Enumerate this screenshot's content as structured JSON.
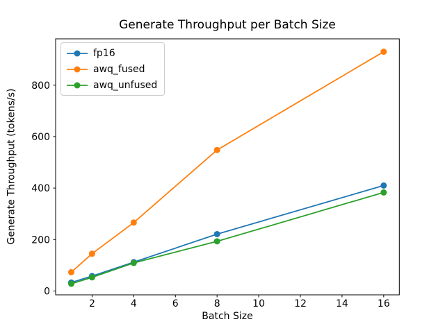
{
  "chart_data": {
    "type": "line",
    "title": "Generate Throughput per Batch Size",
    "xlabel": "Batch Size",
    "ylabel": "Generate Throughput (tokens/s)",
    "x": [
      1,
      2,
      4,
      8,
      16
    ],
    "series": [
      {
        "name": "fp16",
        "color": "#1f77b4",
        "values": [
          33,
          58,
          112,
          221,
          410
        ]
      },
      {
        "name": "awq_fused",
        "color": "#ff7f0e",
        "values": [
          73,
          145,
          266,
          548,
          930
        ]
      },
      {
        "name": "awq_unfused",
        "color": "#2ca02c",
        "values": [
          28,
          53,
          109,
          193,
          383
        ]
      }
    ],
    "xticks": [
      2,
      4,
      6,
      8,
      10,
      12,
      14,
      16
    ],
    "yticks": [
      0,
      200,
      400,
      600,
      800
    ],
    "xlim": [
      0.25,
      16.75
    ],
    "ylim": [
      -15,
      980
    ],
    "grid": false,
    "marker": "o",
    "legend_position": "upper left",
    "axis_color": "#000000",
    "background_color": "#ffffff"
  }
}
